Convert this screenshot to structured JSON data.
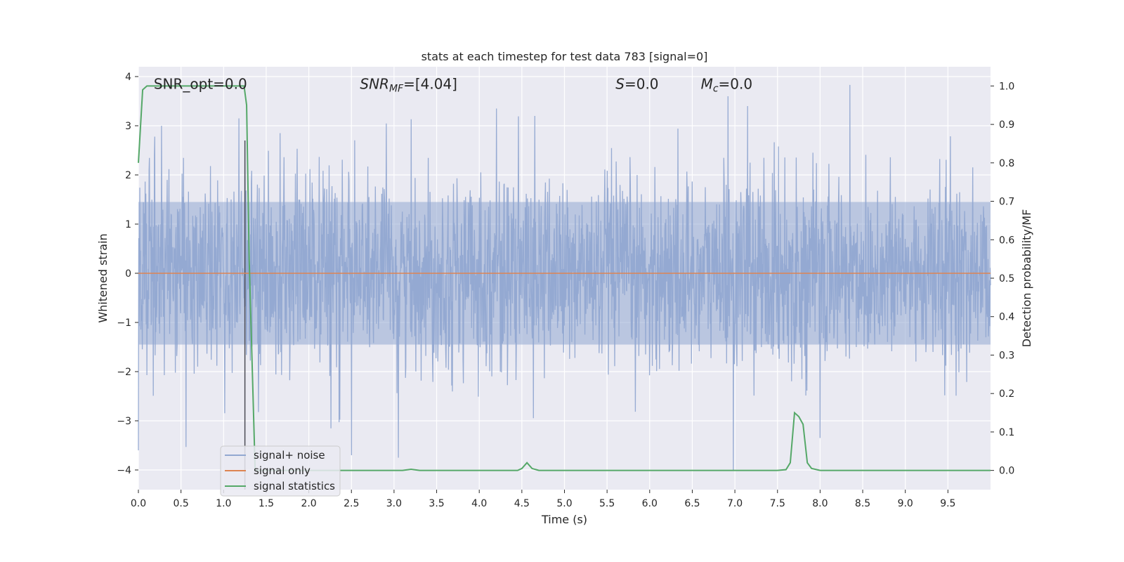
{
  "chart_data": {
    "type": "line",
    "title": "stats at each timestep for test data 783 [signal=0]",
    "xlabel": "Time (s)",
    "ylabel": "Whitened strain",
    "y2label": "Detection probability/MF",
    "xlim": [
      0.0,
      10.0
    ],
    "ylim": [
      -4.4,
      4.2
    ],
    "y2lim": [
      -0.05,
      1.05
    ],
    "x_ticks": [
      "0.0",
      "0.5",
      "1.0",
      "1.5",
      "2.0",
      "2.5",
      "3.0",
      "3.5",
      "4.0",
      "4.5",
      "5.0",
      "5.5",
      "6.0",
      "6.5",
      "7.0",
      "7.5",
      "8.0",
      "8.5",
      "9.0",
      "9.5"
    ],
    "y_ticks": [
      "4",
      "3",
      "2",
      "1",
      "0",
      "−1",
      "−2",
      "−3",
      "−4"
    ],
    "y2_ticks": [
      "1.0",
      "0.9",
      "0.8",
      "0.7",
      "0.6",
      "0.5",
      "0.4",
      "0.3",
      "0.2",
      "0.1",
      "0.0"
    ],
    "grid": true,
    "legend_position": "lower-left",
    "annotations": [
      {
        "id": "snr_opt",
        "text": "SNR_opt=0.0",
        "x": 0.18,
        "y": 3.85
      },
      {
        "id": "snr_mf",
        "text": "SNR_MF=[4.04]",
        "x": 2.6,
        "y": 3.85
      },
      {
        "id": "s_val",
        "text": "S=0.0",
        "x": 5.6,
        "y": 3.85
      },
      {
        "id": "mc_val",
        "text": "M_c=0.0",
        "x": 6.6,
        "y": 3.85
      }
    ],
    "marker_line": {
      "x": 1.25
    },
    "series": [
      {
        "name": "signal+ noise",
        "axis": "left",
        "color": "#92a8d1",
        "kind": "noise",
        "typical_amplitude": 1.5,
        "max_positive": 3.83,
        "min_negative": -4.0,
        "notable_spikes": [
          {
            "x": 0.27,
            "y": 3.0
          },
          {
            "x": 1.25,
            "y": 2.7
          },
          {
            "x": 1.18,
            "y": 3.15
          },
          {
            "x": 4.2,
            "y": 3.35
          },
          {
            "x": 4.65,
            "y": 3.2
          },
          {
            "x": 6.92,
            "y": 3.6
          },
          {
            "x": 7.15,
            "y": 3.4
          },
          {
            "x": 8.35,
            "y": 3.83
          },
          {
            "x": 0.0,
            "y": -3.6
          },
          {
            "x": 2.5,
            "y": -3.7
          },
          {
            "x": 3.05,
            "y": -3.75
          },
          {
            "x": 6.98,
            "y": -4.0
          },
          {
            "x": 8.0,
            "y": -3.35
          }
        ]
      },
      {
        "name": "signal only",
        "axis": "left",
        "color": "#dd8452",
        "x": [
          0.0,
          10.0
        ],
        "y": [
          0.0,
          0.0
        ]
      },
      {
        "name": "signal statistics",
        "axis": "right",
        "color": "#55a868",
        "x": [
          0.0,
          0.05,
          0.1,
          0.2,
          0.5,
          1.0,
          1.2,
          1.24,
          1.27,
          1.3,
          1.37,
          1.45,
          2.0,
          3.0,
          3.1,
          3.2,
          3.3,
          4.0,
          4.45,
          4.5,
          4.56,
          4.62,
          4.7,
          5.0,
          6.0,
          7.0,
          7.5,
          7.6,
          7.65,
          7.7,
          7.75,
          7.8,
          7.85,
          7.9,
          8.0,
          9.0,
          10.0
        ],
        "y": [
          0.8,
          0.99,
          1.0,
          1.0,
          1.0,
          1.0,
          1.0,
          1.0,
          0.95,
          0.55,
          0.0,
          0.0,
          0.0,
          0.0,
          0.0,
          0.003,
          0.0,
          0.0,
          0.0,
          0.005,
          0.02,
          0.005,
          0.0,
          0.0,
          0.0,
          0.0,
          0.0,
          0.002,
          0.02,
          0.15,
          0.14,
          0.12,
          0.02,
          0.005,
          0.0,
          0.0,
          0.0
        ]
      }
    ]
  }
}
